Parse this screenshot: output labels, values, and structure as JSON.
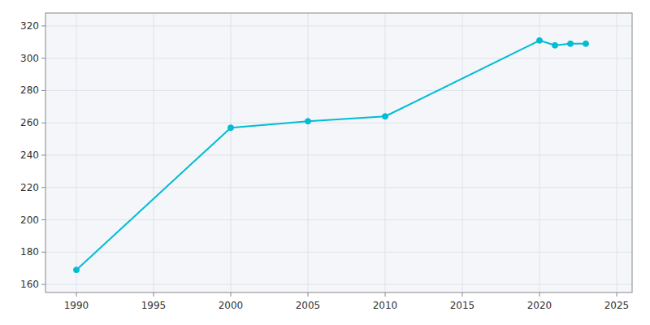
{
  "chart_data": {
    "type": "line",
    "x": [
      1990,
      2000,
      2005,
      2010,
      2020,
      2021,
      2022,
      2023
    ],
    "values": [
      169,
      257,
      261,
      264,
      311,
      308,
      309,
      309
    ],
    "color": "#00BCD4",
    "marker": "circle",
    "xlim": [
      1988,
      2026
    ],
    "ylim": [
      155,
      328
    ],
    "xticks": [
      1990,
      1995,
      2000,
      2005,
      2010,
      2015,
      2020,
      2025
    ],
    "yticks": [
      160,
      180,
      200,
      220,
      240,
      260,
      280,
      300,
      320
    ],
    "grid": true
  }
}
